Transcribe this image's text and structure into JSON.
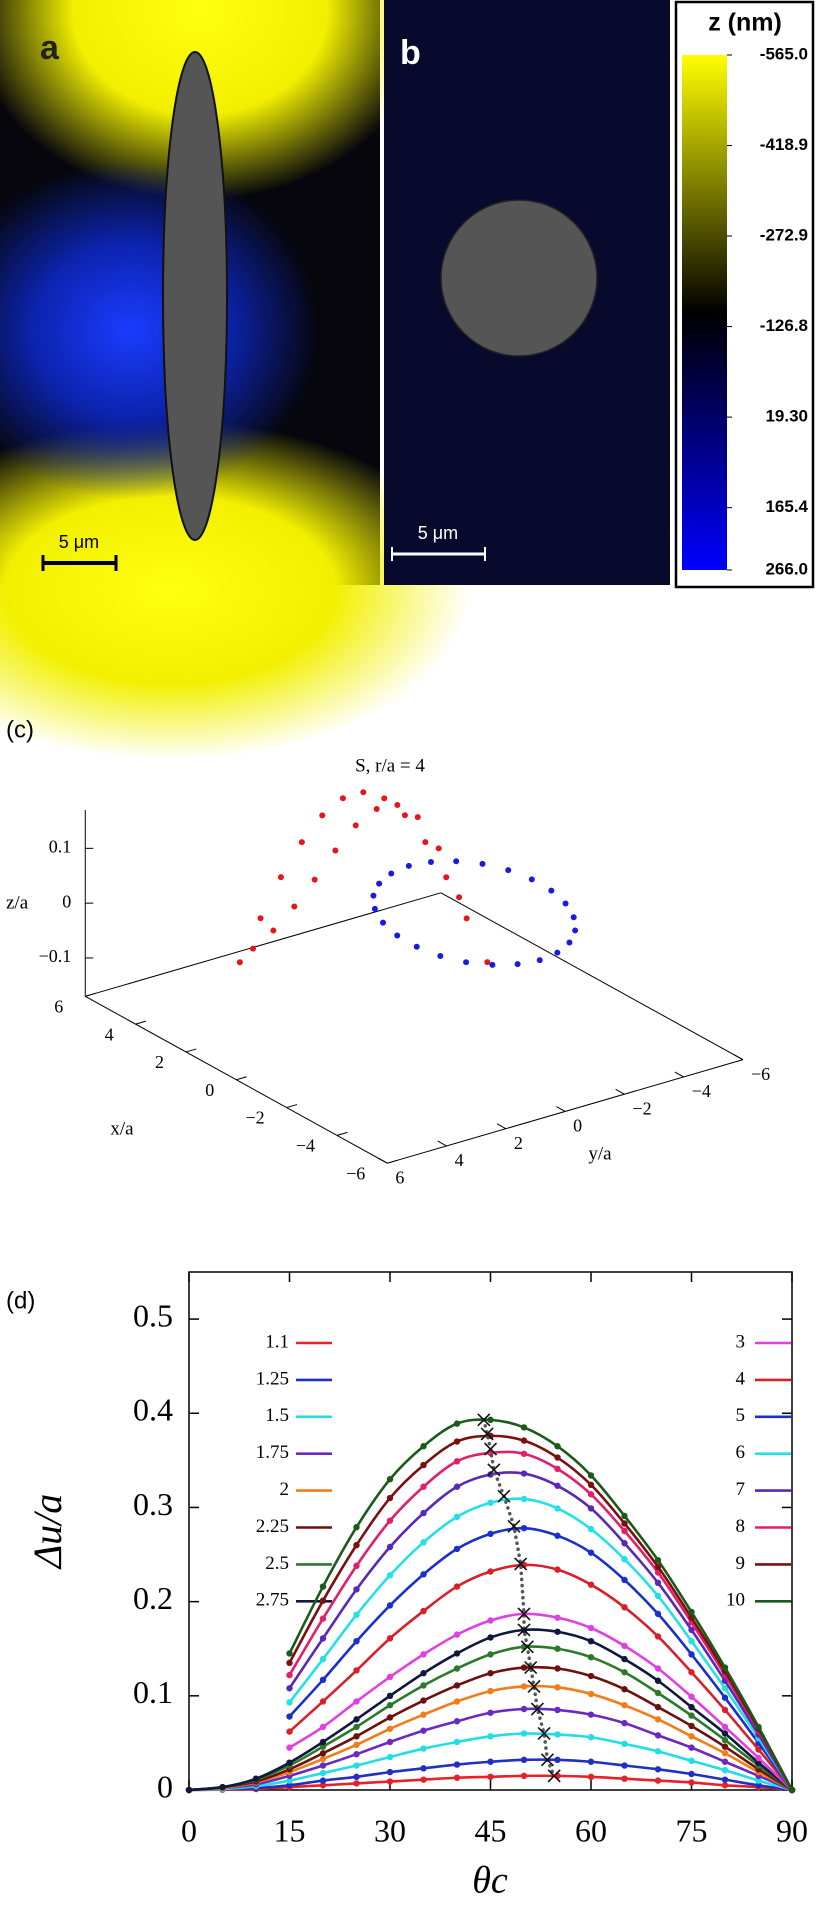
{
  "chart_data": [
    {
      "type": "image",
      "panels": [
        {
          "label": "a",
          "scale_bar": "5 μm"
        },
        {
          "label": "b",
          "scale_bar": "5 μm"
        }
      ],
      "colorbar": {
        "title": "z (nm)",
        "colormap": [
          "#ffff00",
          "#000000",
          "#0000ff"
        ],
        "lim": [
          -565,
          266
        ],
        "ticks": [
          {
            "value": -565,
            "label": "-565.0"
          },
          -418.9,
          -272.9,
          -126.8,
          {
            "value": 19.3,
            "label": "19.30"
          },
          165.4,
          {
            "value": 266,
            "label": "266.0"
          }
        ]
      }
    },
    {
      "type": "scatter3d",
      "label": "(c)",
      "title": "S, r/a = 4",
      "xlabel": "x/a",
      "ylabel": "y/a",
      "zlabel": "z/a",
      "xlim": [
        -6,
        6
      ],
      "ylim": [
        -6,
        6
      ],
      "zlim": [
        -0.17,
        0.17
      ],
      "xticks": [
        {
          "value": -6,
          "label": "−6"
        },
        {
          "value": -4,
          "label": "−4"
        },
        {
          "value": -2,
          "label": "−2"
        },
        0,
        2,
        4,
        6
      ],
      "yticks": [
        {
          "value": -6,
          "label": "−6"
        },
        {
          "value": -4,
          "label": "−4"
        },
        {
          "value": -2,
          "label": "−2"
        },
        0,
        2,
        4,
        6
      ],
      "zticks": [
        {
          "value": -0.1,
          "label": "−0.1"
        },
        0,
        0.1
      ],
      "series": [
        {
          "color": "#e8141c",
          "x": [
            2.39,
            2.11,
            1.83,
            1.54,
            1.26,
            0.98,
            0.7,
            0.41,
            0.13,
            -0.15,
            -0.44,
            -0.72,
            -1.0,
            2.41,
            2.13,
            1.84,
            1.56,
            1.28,
            1.0,
            0.71,
            0.43,
            0.15,
            -0.14,
            -0.42
          ],
          "y": [
            3.85,
            3.39,
            2.94,
            2.48,
            2.03,
            1.57,
            1.12,
            0.66,
            0.2,
            -0.25,
            -0.71,
            -1.16,
            -1.62,
            3.39,
            2.94,
            2.48,
            2.03,
            1.57,
            1.12,
            0.66,
            0.2,
            -0.25,
            -0.71,
            -1.16
          ],
          "z": [
            -0.05,
            0.03,
            0.105,
            0.169,
            0.218,
            0.249,
            0.26,
            0.249,
            0.218,
            0.169,
            0.105,
            0.03,
            -0.05,
            -0.033,
            0.0,
            0.044,
            0.093,
            0.146,
            0.192,
            0.222,
            0.229,
            0.207,
            0.15,
            0.061
          ]
        },
        {
          "color": "#1a1ae0",
          "x": [
            2.8,
            2.71,
            2.45,
            2.04,
            1.5,
            0.87,
            0.2,
            -0.47,
            -1.1,
            -1.64,
            -2.05,
            -2.31,
            -2.4,
            -2.31,
            -2.05,
            -1.64,
            -1.1,
            -0.47,
            0.2,
            0.87,
            1.5,
            2.04,
            2.45,
            2.71
          ],
          "y": [
            -2.2,
            -1.53,
            -0.9,
            -0.36,
            0.05,
            0.31,
            0.4,
            0.31,
            0.05,
            -0.36,
            -0.9,
            -1.53,
            -2.2,
            -2.87,
            -3.5,
            -4.04,
            -4.45,
            -4.71,
            -4.8,
            -4.71,
            -4.45,
            -4.04,
            -3.5,
            -2.87
          ],
          "z": [
            0.02,
            0.019,
            0.017,
            0.014,
            0.01,
            0.005,
            0,
            -0.005,
            -0.01,
            -0.014,
            -0.017,
            -0.019,
            -0.02,
            -0.019,
            -0.017,
            -0.014,
            -0.01,
            -0.005,
            0,
            0.005,
            0.01,
            0.014,
            0.017,
            0.019
          ]
        }
      ]
    },
    {
      "type": "line",
      "label": "(d)",
      "xlabel": "θc",
      "ylabel": "Δu/a",
      "x": [
        0,
        5,
        10,
        15,
        20,
        25,
        30,
        35,
        40,
        45,
        50,
        55,
        60,
        65,
        70,
        75,
        80,
        85,
        90
      ],
      "xlim": [
        0,
        90
      ],
      "ylim": [
        0,
        0.55
      ],
      "xticks": [
        0,
        15,
        30,
        45,
        60,
        75,
        90
      ],
      "yticks": [
        0,
        0.1,
        0.2,
        0.3,
        0.4,
        0.5
      ],
      "series": [
        {
          "name": "1.1",
          "color": "#e8202a",
          "values": [
            0,
            0.0003,
            0.001,
            0.003,
            0.005,
            0.007,
            0.009,
            0.011,
            0.013,
            0.014,
            0.015,
            0.015,
            0.014,
            0.012,
            0.01,
            0.008,
            0.005,
            0.003,
            0
          ]
        },
        {
          "name": "1.25",
          "color": "#2030c0",
          "values": [
            0,
            0.001,
            0.002,
            0.005,
            0.01,
            0.014,
            0.019,
            0.023,
            0.027,
            0.03,
            0.032,
            0.032,
            0.03,
            0.026,
            0.022,
            0.017,
            0.011,
            0.005,
            0
          ]
        },
        {
          "name": "1.5",
          "color": "#22dde6",
          "values": [
            0,
            0.001,
            0.004,
            0.01,
            0.018,
            0.026,
            0.035,
            0.044,
            0.051,
            0.057,
            0.06,
            0.059,
            0.056,
            0.049,
            0.041,
            0.031,
            0.021,
            0.01,
            0
          ]
        },
        {
          "name": "1.75",
          "color": "#6a2ac0",
          "values": [
            0,
            0.002,
            0.006,
            0.015,
            0.026,
            0.038,
            0.051,
            0.063,
            0.073,
            0.082,
            0.086,
            0.085,
            0.08,
            0.071,
            0.058,
            0.045,
            0.03,
            0.015,
            0
          ]
        },
        {
          "name": "2",
          "color": "#f07c1a",
          "values": [
            0,
            0.002,
            0.008,
            0.019,
            0.033,
            0.048,
            0.065,
            0.08,
            0.094,
            0.105,
            0.11,
            0.109,
            0.102,
            0.09,
            0.075,
            0.057,
            0.039,
            0.019,
            0
          ]
        },
        {
          "name": "2.25",
          "color": "#6e1010",
          "values": [
            0,
            0.003,
            0.009,
            0.022,
            0.039,
            0.057,
            0.077,
            0.095,
            0.111,
            0.124,
            0.13,
            0.129,
            0.121,
            0.107,
            0.088,
            0.068,
            0.046,
            0.022,
            0
          ]
        },
        {
          "name": "2.5",
          "color": "#2a7a2a",
          "values": [
            0,
            0.003,
            0.011,
            0.026,
            0.046,
            0.067,
            0.09,
            0.111,
            0.129,
            0.144,
            0.152,
            0.15,
            0.141,
            0.125,
            0.103,
            0.079,
            0.053,
            0.026,
            0
          ]
        },
        {
          "name": "2.75",
          "color": "#101840",
          "values": [
            0,
            0.003,
            0.012,
            0.029,
            0.051,
            0.075,
            0.1,
            0.124,
            0.145,
            0.162,
            0.17,
            0.168,
            0.158,
            0.139,
            0.116,
            0.088,
            0.06,
            0.029,
            0
          ]
        },
        {
          "name": "3",
          "color": "#e040e0",
          "values": [
            null,
            null,
            null,
            0.045,
            0.067,
            0.094,
            0.12,
            0.144,
            0.165,
            0.18,
            0.187,
            0.183,
            0.172,
            0.153,
            0.129,
            0.099,
            0.067,
            0.034,
            0
          ]
        },
        {
          "name": "4",
          "color": "#d8202a",
          "values": [
            null,
            null,
            null,
            0.062,
            0.094,
            0.127,
            0.161,
            0.19,
            0.216,
            0.232,
            0.239,
            0.234,
            0.218,
            0.194,
            0.163,
            0.125,
            0.085,
            0.043,
            0
          ]
        },
        {
          "name": "5",
          "color": "#1a30c8",
          "values": [
            null,
            null,
            null,
            0.078,
            0.117,
            0.158,
            0.196,
            0.229,
            0.256,
            0.272,
            0.278,
            0.27,
            0.252,
            0.223,
            0.187,
            0.144,
            0.098,
            0.05,
            0
          ]
        },
        {
          "name": "6",
          "color": "#22e0e8",
          "values": [
            null,
            null,
            null,
            0.093,
            0.139,
            0.186,
            0.228,
            0.263,
            0.29,
            0.305,
            0.309,
            0.299,
            0.277,
            0.245,
            0.206,
            0.158,
            0.108,
            0.055,
            0
          ]
        },
        {
          "name": "7",
          "color": "#5a28b8",
          "values": [
            null,
            null,
            null,
            0.108,
            0.161,
            0.213,
            0.258,
            0.294,
            0.322,
            0.335,
            0.336,
            0.323,
            0.299,
            0.262,
            0.22,
            0.17,
            0.116,
            0.059,
            0
          ]
        },
        {
          "name": "8",
          "color": "#e0206a",
          "values": [
            null,
            null,
            null,
            0.122,
            0.182,
            0.238,
            0.286,
            0.322,
            0.349,
            0.358,
            0.357,
            0.341,
            0.314,
            0.275,
            0.231,
            0.178,
            0.122,
            0.063,
            0
          ]
        },
        {
          "name": "9",
          "color": "#7a1010",
          "values": [
            null,
            null,
            null,
            0.135,
            0.201,
            0.26,
            0.31,
            0.345,
            0.37,
            0.376,
            0.371,
            0.353,
            0.324,
            0.283,
            0.237,
            0.183,
            0.126,
            0.065,
            0
          ]
        },
        {
          "name": "10",
          "color": "#1a5a1a",
          "values": [
            null,
            null,
            null,
            0.145,
            0.216,
            0.279,
            0.33,
            0.365,
            0.389,
            0.393,
            0.385,
            0.365,
            0.334,
            0.291,
            0.244,
            0.189,
            0.13,
            0.067,
            0
          ]
        }
      ],
      "markers": {
        "x": [
          44,
          44.5,
          45,
          45.5,
          47,
          48.5,
          49.5,
          50,
          50,
          50.5,
          51,
          51.5,
          52,
          53,
          53.5,
          54.5
        ],
        "values": [
          0.393,
          0.378,
          0.362,
          0.34,
          0.312,
          0.28,
          0.24,
          0.187,
          0.17,
          0.152,
          0.13,
          0.11,
          0.086,
          0.06,
          0.032,
          0.015
        ]
      }
    }
  ]
}
